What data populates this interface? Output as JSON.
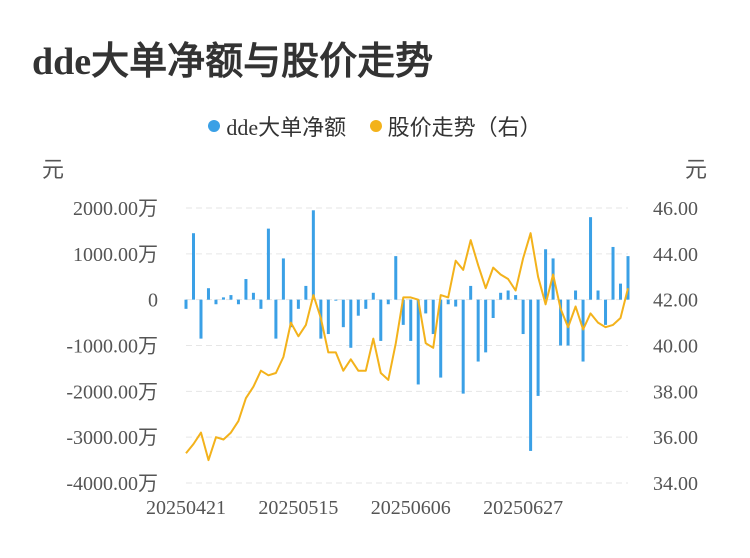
{
  "title": "dde大单净额与股价走势",
  "legend": {
    "items": [
      {
        "label": "dde大单净额",
        "color": "#3aa0e6"
      },
      {
        "label": "股价走势（右）",
        "color": "#f3b21b"
      }
    ]
  },
  "chart_data": {
    "type": "bar+line",
    "left_axis": {
      "unit": "元",
      "ylim": [
        -4000,
        2000
      ],
      "ticks": [
        2000,
        1000,
        0,
        -1000,
        -2000,
        -3000,
        -4000
      ],
      "tick_labels": [
        "2000.00万",
        "1000.00万",
        "0",
        "-1000.00万",
        "-2000.00万",
        "-3000.00万",
        "-4000.00万"
      ]
    },
    "right_axis": {
      "unit": "元",
      "ylim": [
        34,
        46
      ],
      "ticks": [
        46,
        44,
        42,
        40,
        38,
        36,
        34
      ],
      "tick_labels": [
        "46.00",
        "44.00",
        "42.00",
        "40.00",
        "38.00",
        "36.00",
        "34.00"
      ]
    },
    "x_tick_labels": [
      {
        "index": 0,
        "label": "20250421"
      },
      {
        "index": 15,
        "label": "20250515"
      },
      {
        "index": 30,
        "label": "20250606"
      },
      {
        "index": 45,
        "label": "20250627"
      }
    ],
    "grid": true,
    "series": [
      {
        "name": "dde大单净额",
        "type": "bar",
        "color": "#3aa0e6",
        "values": [
          -200,
          1450,
          -850,
          250,
          -100,
          50,
          100,
          -100,
          450,
          150,
          -200,
          1550,
          -850,
          900,
          -600,
          -200,
          300,
          1950,
          -850,
          -750,
          0,
          -600,
          -1050,
          -350,
          -200,
          150,
          -900,
          -100,
          950,
          -550,
          -900,
          -1850,
          -300,
          -750,
          -1700,
          -100,
          -150,
          -2050,
          300,
          -1350,
          -1150,
          -400,
          150,
          200,
          100,
          -750,
          -3300,
          -2100,
          1100,
          900,
          -1000,
          -1000,
          200,
          -1350,
          1800,
          200,
          -550,
          1150,
          350,
          950
        ]
      },
      {
        "name": "股价走势（右）",
        "type": "line",
        "color": "#f3b21b",
        "values": [
          35.3,
          35.7,
          36.2,
          35.0,
          36.0,
          35.9,
          36.2,
          36.7,
          37.7,
          38.2,
          38.9,
          38.7,
          38.8,
          39.5,
          41.0,
          40.4,
          40.9,
          42.2,
          41.2,
          39.7,
          39.7,
          38.9,
          39.4,
          38.9,
          38.9,
          40.3,
          38.8,
          38.5,
          40.1,
          42.1,
          42.1,
          42.0,
          40.1,
          39.9,
          42.2,
          42.1,
          43.7,
          43.3,
          44.6,
          43.5,
          42.5,
          43.4,
          43.1,
          42.9,
          42.4,
          43.8,
          44.9,
          43.0,
          41.8,
          43.1,
          41.6,
          40.8,
          41.7,
          40.7,
          41.4,
          41.0,
          40.8,
          40.9,
          41.2,
          42.5
        ]
      }
    ]
  }
}
